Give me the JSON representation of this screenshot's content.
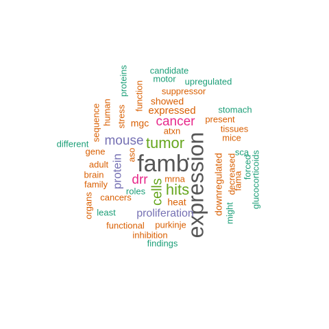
{
  "colors": {
    "dark_gray": "#555555",
    "dark_orange": "#d95f02",
    "teal": "#1b9e77",
    "magenta": "#e7298a",
    "purple": "#7570b3",
    "green": "#66a61e"
  },
  "words": [
    {
      "text": "expression",
      "color": "dark_gray",
      "rank": 1
    },
    {
      "text": "famb",
      "color": "dark_gray",
      "rank": 2
    },
    {
      "text": "tumor",
      "color": "green",
      "rank": 3
    },
    {
      "text": "hits",
      "color": "green",
      "rank": 3
    },
    {
      "text": "cancer",
      "color": "magenta",
      "rank": 3
    },
    {
      "text": "cells",
      "color": "green",
      "rank": 3
    },
    {
      "text": "mouse",
      "color": "purple",
      "rank": 3
    },
    {
      "text": "protein",
      "color": "purple",
      "rank": 3
    },
    {
      "text": "proliferation",
      "color": "purple",
      "rank": 4
    },
    {
      "text": "drr",
      "color": "magenta",
      "rank": 4
    },
    {
      "text": "downregulated",
      "color": "dark_orange",
      "rank": 4
    },
    {
      "text": "expressed",
      "color": "dark_orange",
      "rank": 4
    },
    {
      "text": "showed",
      "color": "dark_orange",
      "rank": 5
    },
    {
      "text": "mgc",
      "color": "dark_orange",
      "rank": 5
    },
    {
      "text": "heat",
      "color": "dark_orange",
      "rank": 5
    },
    {
      "text": "present",
      "color": "dark_orange",
      "rank": 5
    },
    {
      "text": "suppressor",
      "color": "dark_orange",
      "rank": 6
    },
    {
      "text": "tissues",
      "color": "dark_orange",
      "rank": 6
    },
    {
      "text": "mice",
      "color": "dark_orange",
      "rank": 6
    },
    {
      "text": "gene",
      "color": "dark_orange",
      "rank": 6
    },
    {
      "text": "adult",
      "color": "dark_orange",
      "rank": 6
    },
    {
      "text": "cancers",
      "color": "dark_orange",
      "rank": 6
    },
    {
      "text": "functional",
      "color": "dark_orange",
      "rank": 6
    },
    {
      "text": "purkinje",
      "color": "dark_orange",
      "rank": 6
    },
    {
      "text": "inhibition",
      "color": "dark_orange",
      "rank": 6
    },
    {
      "text": "brain",
      "color": "dark_orange",
      "rank": 6
    },
    {
      "text": "family",
      "color": "dark_orange",
      "rank": 6
    },
    {
      "text": "mrna",
      "color": "dark_orange",
      "rank": 6
    },
    {
      "text": "atxn",
      "color": "dark_orange",
      "rank": 6
    },
    {
      "text": "stress",
      "color": "dark_orange",
      "rank": 6
    },
    {
      "text": "function",
      "color": "dark_orange",
      "rank": 6
    },
    {
      "text": "human",
      "color": "dark_orange",
      "rank": 6
    },
    {
      "text": "sequence",
      "color": "dark_orange",
      "rank": 6
    },
    {
      "text": "organs",
      "color": "dark_orange",
      "rank": 6
    },
    {
      "text": "aso",
      "color": "dark_orange",
      "rank": 6
    },
    {
      "text": "decreased",
      "color": "dark_orange",
      "rank": 6
    },
    {
      "text": "fama",
      "color": "dark_orange",
      "rank": 6
    },
    {
      "text": "candidate",
      "color": "teal",
      "rank": 7
    },
    {
      "text": "motor",
      "color": "teal",
      "rank": 7
    },
    {
      "text": "upregulated",
      "color": "teal",
      "rank": 7
    },
    {
      "text": "proteins",
      "color": "teal",
      "rank": 7
    },
    {
      "text": "stomach",
      "color": "teal",
      "rank": 7
    },
    {
      "text": "different",
      "color": "teal",
      "rank": 7
    },
    {
      "text": "sca",
      "color": "teal",
      "rank": 7
    },
    {
      "text": "forced",
      "color": "teal",
      "rank": 7
    },
    {
      "text": "glucocorticoids",
      "color": "teal",
      "rank": 7
    },
    {
      "text": "might",
      "color": "teal",
      "rank": 7
    },
    {
      "text": "roles",
      "color": "teal",
      "rank": 7
    },
    {
      "text": "least",
      "color": "teal",
      "rank": 7
    },
    {
      "text": "findings",
      "color": "teal",
      "rank": 7
    }
  ]
}
